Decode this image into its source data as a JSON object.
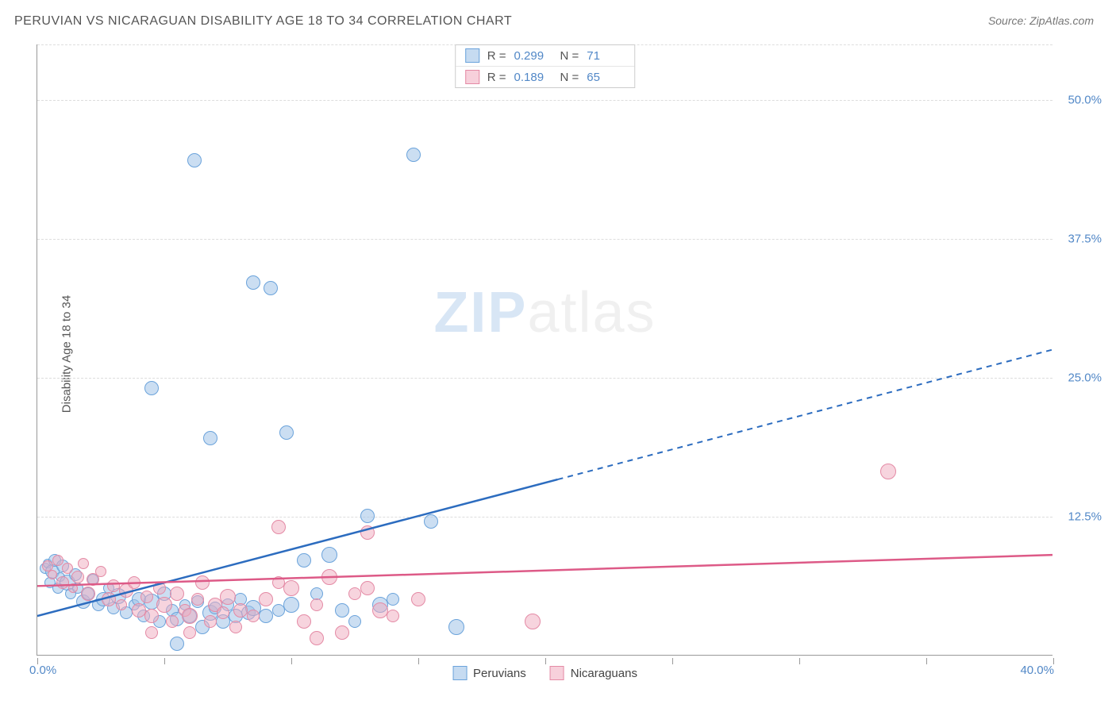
{
  "title": "PERUVIAN VS NICARAGUAN DISABILITY AGE 18 TO 34 CORRELATION CHART",
  "source": "Source: ZipAtlas.com",
  "y_axis_label": "Disability Age 18 to 34",
  "watermark_zip": "ZIP",
  "watermark_atlas": "atlas",
  "chart": {
    "type": "scatter",
    "background_color": "#ffffff",
    "grid_color": "#dddddd",
    "xlim": [
      0,
      40
    ],
    "ylim": [
      0,
      55
    ],
    "x_labels": {
      "min": "0.0%",
      "max": "40.0%"
    },
    "y_ticks": [
      {
        "value": 12.5,
        "label": "12.5%"
      },
      {
        "value": 25.0,
        "label": "25.0%"
      },
      {
        "value": 37.5,
        "label": "37.5%"
      },
      {
        "value": 50.0,
        "label": "50.0%"
      }
    ],
    "x_tick_positions": [
      0,
      5,
      10,
      15,
      20,
      25,
      30,
      35,
      40
    ],
    "series": [
      {
        "name": "Peruvians",
        "color_fill": "rgba(160,195,232,0.55)",
        "color_stroke": "#6ba3db",
        "trend_color": "#2c6cbf",
        "marker_radius": 9,
        "r_value": "0.299",
        "n_value": "71",
        "trend": {
          "x1": 0,
          "y1": 3.5,
          "x2_solid": 20.5,
          "y2_solid": 15.8,
          "x2_dashed": 40,
          "y2_dashed": 27.5
        },
        "points": [
          {
            "x": 0.3,
            "y": 7.8,
            "r": 7
          },
          {
            "x": 0.4,
            "y": 8.2,
            "r": 6
          },
          {
            "x": 0.5,
            "y": 6.5,
            "r": 7
          },
          {
            "x": 0.6,
            "y": 7.5,
            "r": 9
          },
          {
            "x": 0.7,
            "y": 8.5,
            "r": 8
          },
          {
            "x": 0.8,
            "y": 6.0,
            "r": 7
          },
          {
            "x": 0.9,
            "y": 7.0,
            "r": 6
          },
          {
            "x": 1.0,
            "y": 8.0,
            "r": 8
          },
          {
            "x": 1.2,
            "y": 6.5,
            "r": 10
          },
          {
            "x": 1.3,
            "y": 5.5,
            "r": 7
          },
          {
            "x": 1.5,
            "y": 7.2,
            "r": 8
          },
          {
            "x": 1.6,
            "y": 6.0,
            "r": 7
          },
          {
            "x": 1.8,
            "y": 4.8,
            "r": 9
          },
          {
            "x": 2.0,
            "y": 5.5,
            "r": 8
          },
          {
            "x": 2.2,
            "y": 6.8,
            "r": 7
          },
          {
            "x": 2.4,
            "y": 4.5,
            "r": 8
          },
          {
            "x": 2.6,
            "y": 5.0,
            "r": 9
          },
          {
            "x": 2.8,
            "y": 6.0,
            "r": 7
          },
          {
            "x": 3.0,
            "y": 4.2,
            "r": 8
          },
          {
            "x": 3.2,
            "y": 5.3,
            "r": 10
          },
          {
            "x": 3.5,
            "y": 3.8,
            "r": 8
          },
          {
            "x": 3.8,
            "y": 4.5,
            "r": 7
          },
          {
            "x": 4.0,
            "y": 5.0,
            "r": 9
          },
          {
            "x": 4.2,
            "y": 3.5,
            "r": 8
          },
          {
            "x": 4.5,
            "y": 4.8,
            "r": 10
          },
          {
            "x": 4.8,
            "y": 3.0,
            "r": 8
          },
          {
            "x": 5.0,
            "y": 5.5,
            "r": 9
          },
          {
            "x": 5.3,
            "y": 4.0,
            "r": 8
          },
          {
            "x": 5.5,
            "y": 3.2,
            "r": 9
          },
          {
            "x": 5.8,
            "y": 4.5,
            "r": 7
          },
          {
            "x": 6.0,
            "y": 3.5,
            "r": 9
          },
          {
            "x": 6.3,
            "y": 4.8,
            "r": 8
          },
          {
            "x": 6.5,
            "y": 2.5,
            "r": 9
          },
          {
            "x": 6.8,
            "y": 3.8,
            "r": 10
          },
          {
            "x": 7.0,
            "y": 4.2,
            "r": 8
          },
          {
            "x": 7.3,
            "y": 3.0,
            "r": 9
          },
          {
            "x": 7.5,
            "y": 4.5,
            "r": 8
          },
          {
            "x": 7.8,
            "y": 3.5,
            "r": 9
          },
          {
            "x": 8.0,
            "y": 5.0,
            "r": 8
          },
          {
            "x": 8.3,
            "y": 3.8,
            "r": 9
          },
          {
            "x": 8.5,
            "y": 4.2,
            "r": 10
          },
          {
            "x": 9.0,
            "y": 3.5,
            "r": 9
          },
          {
            "x": 9.5,
            "y": 4.0,
            "r": 8
          },
          {
            "x": 10.0,
            "y": 4.5,
            "r": 10
          },
          {
            "x": 10.5,
            "y": 8.5,
            "r": 9
          },
          {
            "x": 11.0,
            "y": 5.5,
            "r": 8
          },
          {
            "x": 11.5,
            "y": 9.0,
            "r": 10
          },
          {
            "x": 12.0,
            "y": 4.0,
            "r": 9
          },
          {
            "x": 12.5,
            "y": 3.0,
            "r": 8
          },
          {
            "x": 13.0,
            "y": 12.5,
            "r": 9
          },
          {
            "x": 13.5,
            "y": 4.5,
            "r": 10
          },
          {
            "x": 14.0,
            "y": 5.0,
            "r": 8
          },
          {
            "x": 15.5,
            "y": 12.0,
            "r": 9
          },
          {
            "x": 16.5,
            "y": 2.5,
            "r": 10
          },
          {
            "x": 4.5,
            "y": 24.0,
            "r": 9
          },
          {
            "x": 6.2,
            "y": 44.5,
            "r": 9
          },
          {
            "x": 6.8,
            "y": 19.5,
            "r": 9
          },
          {
            "x": 8.5,
            "y": 33.5,
            "r": 9
          },
          {
            "x": 9.2,
            "y": 33.0,
            "r": 9
          },
          {
            "x": 9.8,
            "y": 20.0,
            "r": 9
          },
          {
            "x": 14.8,
            "y": 45.0,
            "r": 9
          },
          {
            "x": 5.5,
            "y": 1.0,
            "r": 9
          }
        ]
      },
      {
        "name": "Nicaraguans",
        "color_fill": "rgba(240,170,190,0.5)",
        "color_stroke": "#e48aa5",
        "trend_color": "#dd5a87",
        "marker_radius": 9,
        "r_value": "0.189",
        "n_value": "65",
        "trend": {
          "x1": 0,
          "y1": 6.2,
          "x2_solid": 40,
          "y2_solid": 9.0,
          "x2_dashed": 40,
          "y2_dashed": 9.0
        },
        "points": [
          {
            "x": 0.4,
            "y": 8.0,
            "r": 7
          },
          {
            "x": 0.6,
            "y": 7.2,
            "r": 6
          },
          {
            "x": 0.8,
            "y": 8.5,
            "r": 7
          },
          {
            "x": 1.0,
            "y": 6.5,
            "r": 8
          },
          {
            "x": 1.2,
            "y": 7.8,
            "r": 7
          },
          {
            "x": 1.4,
            "y": 6.0,
            "r": 6
          },
          {
            "x": 1.6,
            "y": 7.0,
            "r": 8
          },
          {
            "x": 1.8,
            "y": 8.2,
            "r": 7
          },
          {
            "x": 2.0,
            "y": 5.5,
            "r": 9
          },
          {
            "x": 2.2,
            "y": 6.8,
            "r": 8
          },
          {
            "x": 2.5,
            "y": 7.5,
            "r": 7
          },
          {
            "x": 2.8,
            "y": 5.0,
            "r": 9
          },
          {
            "x": 3.0,
            "y": 6.2,
            "r": 8
          },
          {
            "x": 3.3,
            "y": 4.5,
            "r": 7
          },
          {
            "x": 3.5,
            "y": 5.8,
            "r": 9
          },
          {
            "x": 3.8,
            "y": 6.5,
            "r": 8
          },
          {
            "x": 4.0,
            "y": 4.0,
            "r": 9
          },
          {
            "x": 4.3,
            "y": 5.2,
            "r": 8
          },
          {
            "x": 4.5,
            "y": 3.5,
            "r": 9
          },
          {
            "x": 4.8,
            "y": 6.0,
            "r": 8
          },
          {
            "x": 5.0,
            "y": 4.5,
            "r": 10
          },
          {
            "x": 5.3,
            "y": 3.0,
            "r": 8
          },
          {
            "x": 5.5,
            "y": 5.5,
            "r": 9
          },
          {
            "x": 5.8,
            "y": 4.0,
            "r": 8
          },
          {
            "x": 6.0,
            "y": 3.5,
            "r": 10
          },
          {
            "x": 6.3,
            "y": 5.0,
            "r": 8
          },
          {
            "x": 6.5,
            "y": 6.5,
            "r": 9
          },
          {
            "x": 6.8,
            "y": 3.0,
            "r": 8
          },
          {
            "x": 7.0,
            "y": 4.5,
            "r": 9
          },
          {
            "x": 7.3,
            "y": 3.8,
            "r": 8
          },
          {
            "x": 7.5,
            "y": 5.2,
            "r": 10
          },
          {
            "x": 7.8,
            "y": 2.5,
            "r": 8
          },
          {
            "x": 8.0,
            "y": 4.0,
            "r": 9
          },
          {
            "x": 8.5,
            "y": 3.5,
            "r": 8
          },
          {
            "x": 9.0,
            "y": 5.0,
            "r": 9
          },
          {
            "x": 9.5,
            "y": 6.5,
            "r": 8
          },
          {
            "x": 10.0,
            "y": 6.0,
            "r": 10
          },
          {
            "x": 10.5,
            "y": 3.0,
            "r": 9
          },
          {
            "x": 11.0,
            "y": 4.5,
            "r": 8
          },
          {
            "x": 11.5,
            "y": 7.0,
            "r": 10
          },
          {
            "x": 12.0,
            "y": 2.0,
            "r": 9
          },
          {
            "x": 12.5,
            "y": 5.5,
            "r": 8
          },
          {
            "x": 13.0,
            "y": 6.0,
            "r": 9
          },
          {
            "x": 13.5,
            "y": 4.0,
            "r": 10
          },
          {
            "x": 14.0,
            "y": 3.5,
            "r": 8
          },
          {
            "x": 15.0,
            "y": 5.0,
            "r": 9
          },
          {
            "x": 9.5,
            "y": 11.5,
            "r": 9
          },
          {
            "x": 13.0,
            "y": 11.0,
            "r": 9
          },
          {
            "x": 19.5,
            "y": 3.0,
            "r": 10
          },
          {
            "x": 33.5,
            "y": 16.5,
            "r": 10
          },
          {
            "x": 4.5,
            "y": 2.0,
            "r": 8
          },
          {
            "x": 6.0,
            "y": 2.0,
            "r": 8
          },
          {
            "x": 11.0,
            "y": 1.5,
            "r": 9
          }
        ]
      }
    ],
    "legend_r_label": "R =",
    "legend_n_label": "N ="
  }
}
